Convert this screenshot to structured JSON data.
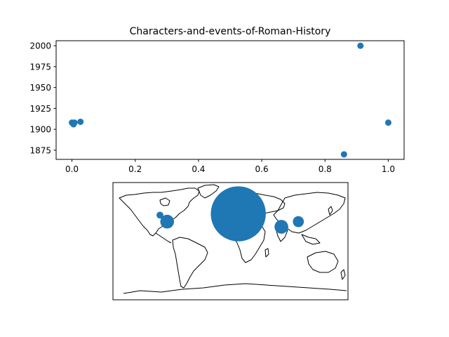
{
  "chart_data": [
    {
      "type": "scatter",
      "title": "Characters-and-events-of-Roman-History",
      "xlabel": "",
      "ylabel": "",
      "xlim": [
        -0.05,
        1.05
      ],
      "ylim": [
        1864,
        2006
      ],
      "xticks": [
        0.0,
        0.2,
        0.4,
        0.6,
        0.8,
        1.0
      ],
      "xtick_labels": [
        "0.0",
        "0.2",
        "0.4",
        "0.6",
        "0.8",
        "1.0"
      ],
      "yticks": [
        1875,
        1900,
        1925,
        1950,
        1975,
        2000
      ],
      "ytick_labels": [
        "1875",
        "1900",
        "1925",
        "1950",
        "1975",
        "2000"
      ],
      "grid": false,
      "color": "#1f77b4",
      "points": [
        {
          "x": 0.0,
          "y": 1908
        },
        {
          "x": 0.005,
          "y": 1906
        },
        {
          "x": 0.008,
          "y": 1908
        },
        {
          "x": 0.027,
          "y": 1909
        },
        {
          "x": 0.86,
          "y": 1870
        },
        {
          "x": 0.912,
          "y": 2000
        },
        {
          "x": 1.0,
          "y": 1908
        }
      ]
    },
    {
      "type": "scatter",
      "subtype": "map-bubble",
      "projection": "equirectangular",
      "lon_range": [
        -180,
        180
      ],
      "lat_range": [
        -90,
        90
      ],
      "color": "#1f77b4",
      "points": [
        {
          "lon": -108,
          "lat": 40,
          "size": 5
        },
        {
          "lon": -97,
          "lat": 30,
          "size": 10
        },
        {
          "lon": 12,
          "lat": 42,
          "size": 40
        },
        {
          "lon": 78,
          "lat": 22,
          "size": 10
        },
        {
          "lon": 104,
          "lat": 30,
          "size": 8
        }
      ]
    }
  ]
}
